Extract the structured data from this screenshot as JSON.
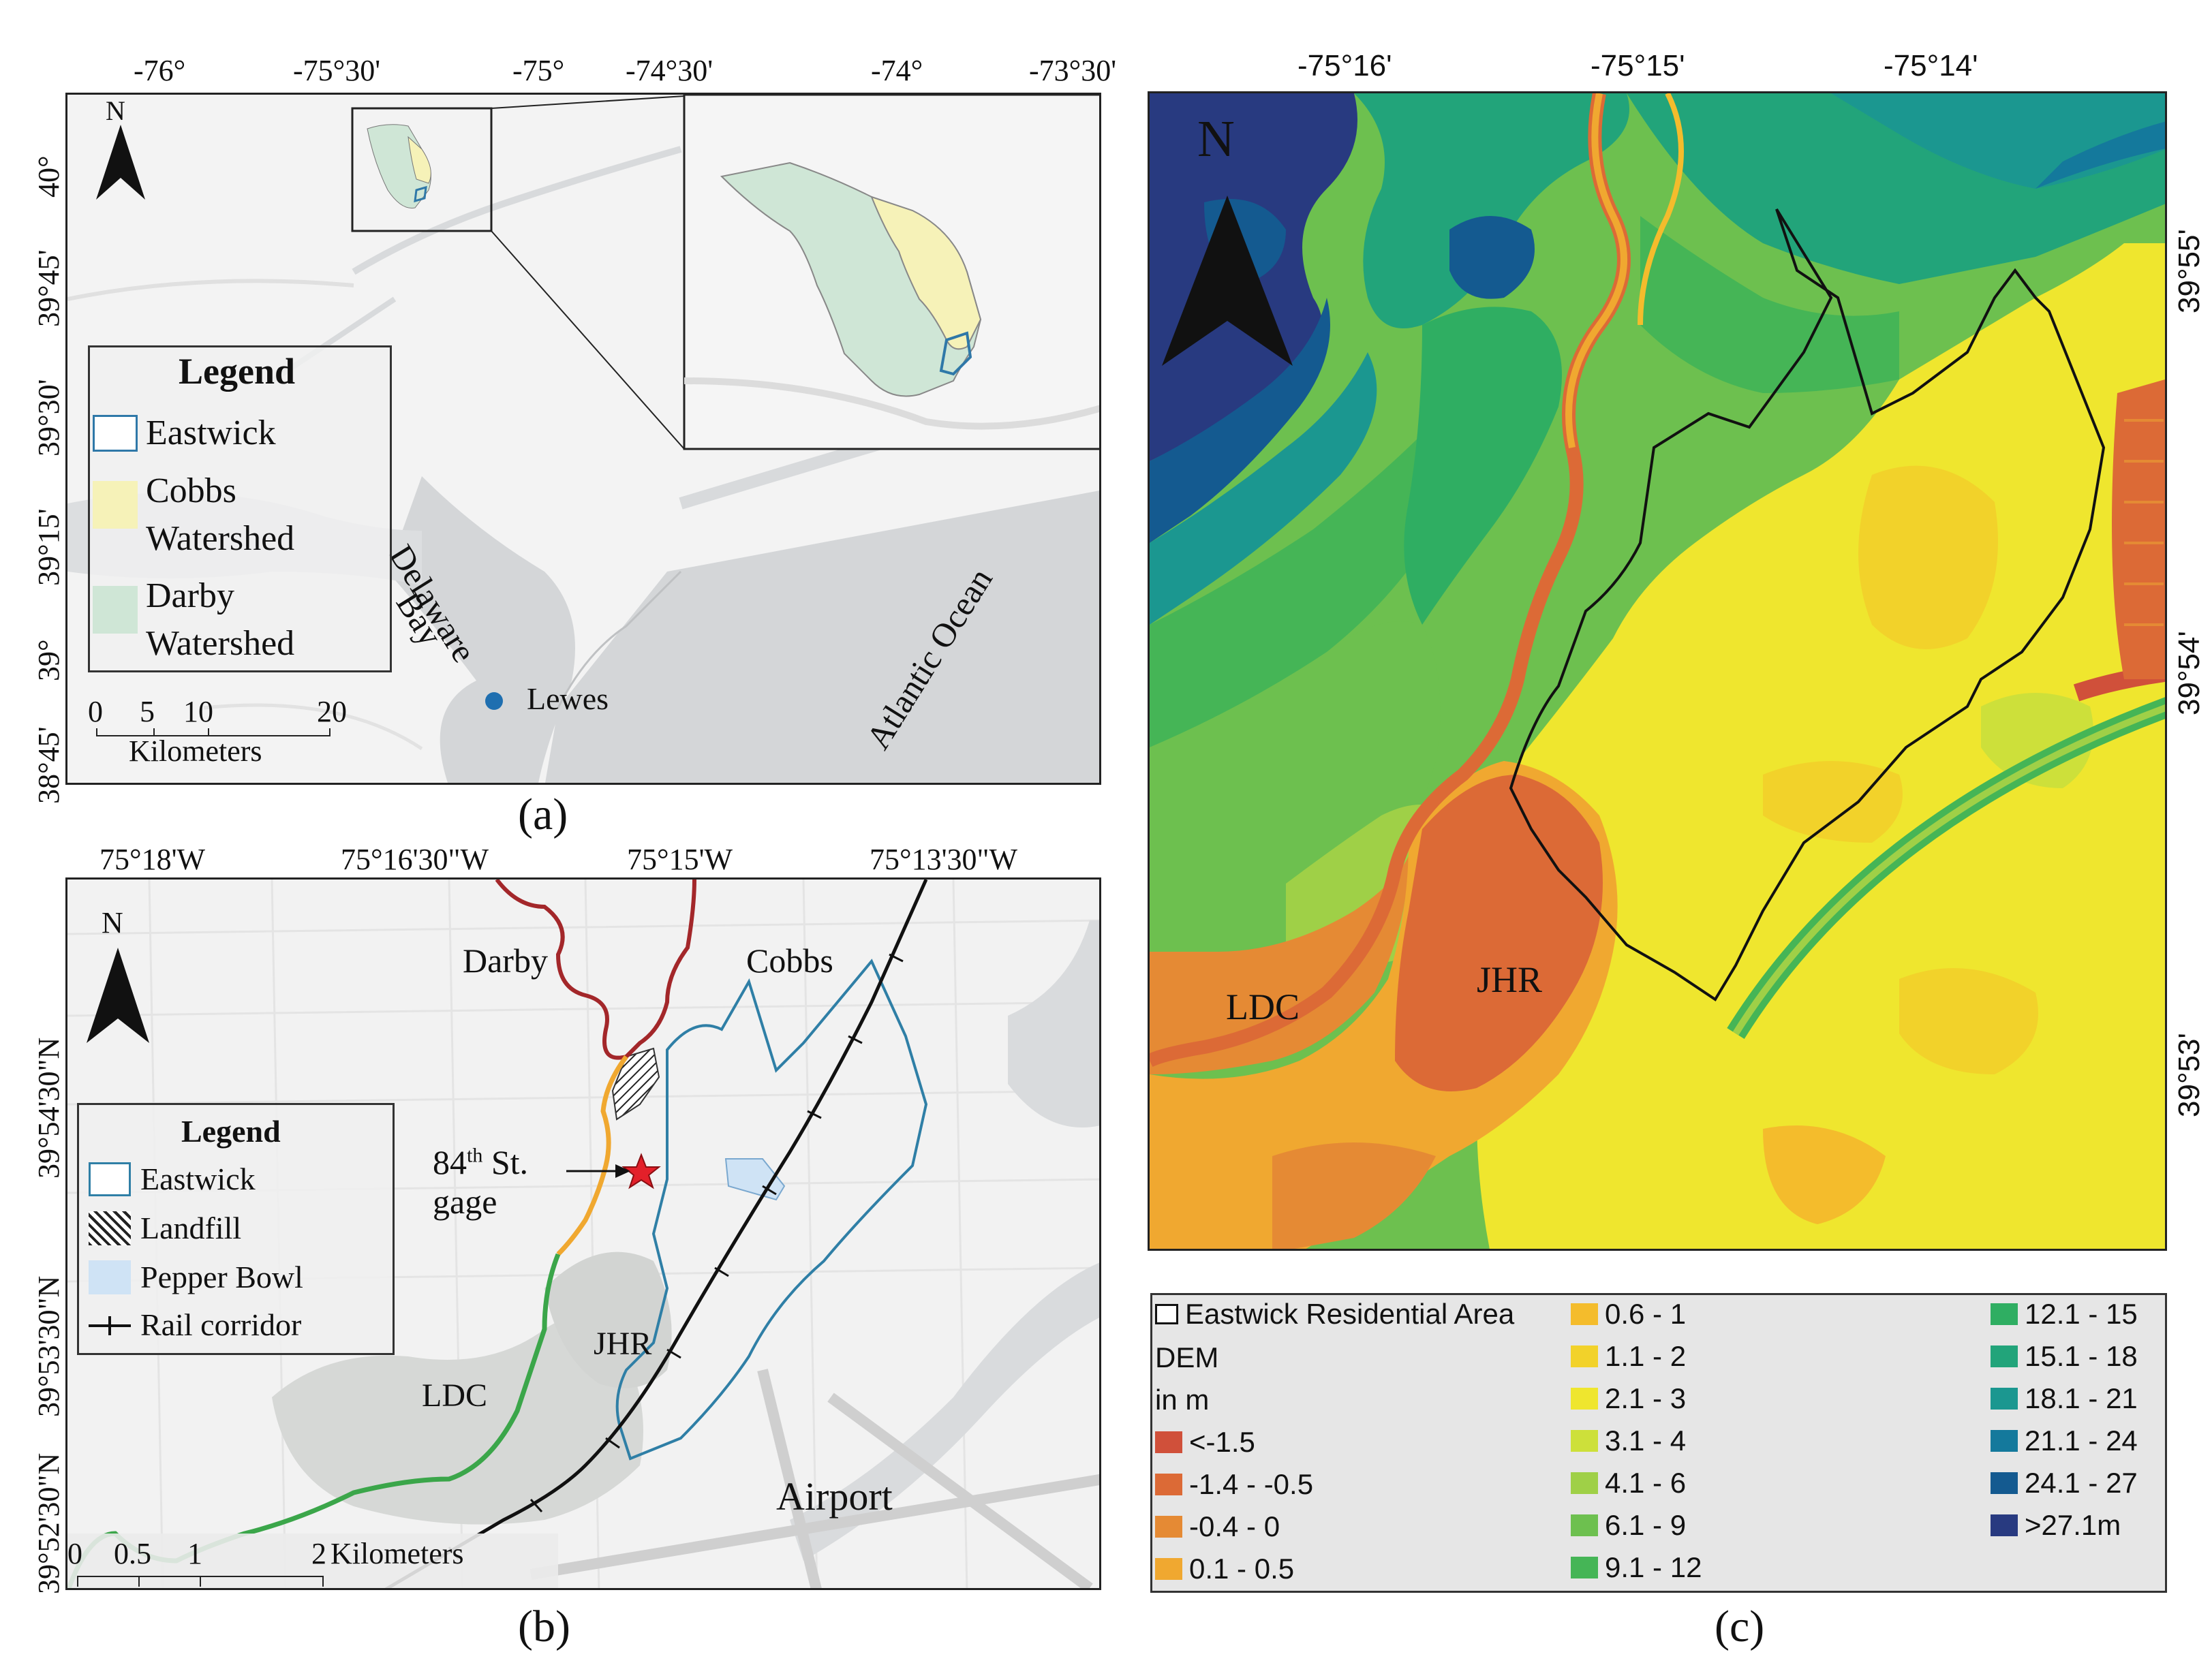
{
  "panel_a": {
    "label": "(a)",
    "top_ticks": [
      "-76°",
      "-75°30'",
      "-75°",
      "-74°30'",
      "-74°",
      "-73°30'"
    ],
    "left_ticks": [
      "40°",
      "39°45'",
      "39°30'",
      "39°15'",
      "39°",
      "38°45'"
    ],
    "north": "N",
    "legend": {
      "title": "Legend",
      "items": [
        {
          "label_lines": [
            "Eastwick"
          ],
          "color": "#ffffff",
          "border": "#2f78a8"
        },
        {
          "label_lines": [
            "Cobbs",
            "Watershed"
          ],
          "color": "#f6f2b8",
          "border": "#f6f2b8"
        },
        {
          "label_lines": [
            "Darby",
            "Watershed"
          ],
          "color": "#cfe6d6",
          "border": "#cfe6d6"
        }
      ]
    },
    "scale": {
      "ticks": [
        "0",
        "5",
        "10",
        "20"
      ],
      "unit": "Kilometers"
    },
    "labels": {
      "bay_line1": "Delaware",
      "bay_line2": "Bay",
      "ocean": "Atlantic Ocean",
      "city": "Lewes"
    }
  },
  "panel_b": {
    "label": "(b)",
    "top_ticks": [
      "75°18'W",
      "75°16'30\"W",
      "75°15'W",
      "75°13'30\"W"
    ],
    "left_ticks": [
      "39°54'30\"N",
      "39°53'30\"N",
      "39°52'30\"N"
    ],
    "north": "N",
    "legend": {
      "title": "Legend",
      "items": [
        {
          "label": "Eastwick"
        },
        {
          "label": "Landfill"
        },
        {
          "label": "Pepper Bowl"
        },
        {
          "label": "Rail corridor"
        }
      ]
    },
    "labels": {
      "darby": "Darby",
      "cobbs": "Cobbs",
      "gage_num": "84",
      "gage_sup": "th",
      "gage_rest": " St.",
      "gage_line2": "gage",
      "jhr": "JHR",
      "ldc": "LDC",
      "airport": "Airport"
    },
    "scale": {
      "ticks": [
        "0",
        "0.5",
        "1",
        "2"
      ],
      "unit": "Kilometers"
    }
  },
  "panel_c": {
    "label": "(c)",
    "top_ticks": [
      "-75°16'",
      "-75°15'",
      "-75°14'"
    ],
    "right_ticks": [
      "39°55'",
      "39°54'",
      "39°53'"
    ],
    "north": "N",
    "labels": {
      "ldc": "LDC",
      "jhr": "JHR"
    },
    "legend": {
      "boundary_label": "Eastwick Residential Area",
      "dem_label_1": "DEM",
      "dem_label_2": "in m",
      "classes": [
        {
          "label": "<-1.5",
          "color": "#d0503a"
        },
        {
          "label": "-1.4 - -0.5",
          "color": "#dc6a36"
        },
        {
          "label": "-0.4 - 0",
          "color": "#e58a34"
        },
        {
          "label": "0.1 - 0.5",
          "color": "#f0a830"
        },
        {
          "label": "0.6 - 1",
          "color": "#f4bc2c"
        },
        {
          "label": "1.1 - 2",
          "color": "#f2d22a"
        },
        {
          "label": "2.1 - 3",
          "color": "#efe62e"
        },
        {
          "label": "3.1 - 4",
          "color": "#cde03a"
        },
        {
          "label": "4.1 - 6",
          "color": "#9fd047"
        },
        {
          "label": "6.1 - 9",
          "color": "#6dc04f"
        },
        {
          "label": "9.1 - 12",
          "color": "#45b556"
        },
        {
          "label": "12.1 - 15",
          "color": "#2fae62"
        },
        {
          "label": "15.1 - 18",
          "color": "#22a47a"
        },
        {
          "label": "18.1 - 21",
          "color": "#1b9790"
        },
        {
          "label": "21.1 - 24",
          "color": "#14799c"
        },
        {
          "label": "24.1 - 27",
          "color": "#145a90"
        },
        {
          "label": ">27.1m",
          "color": "#283a80"
        }
      ]
    }
  }
}
